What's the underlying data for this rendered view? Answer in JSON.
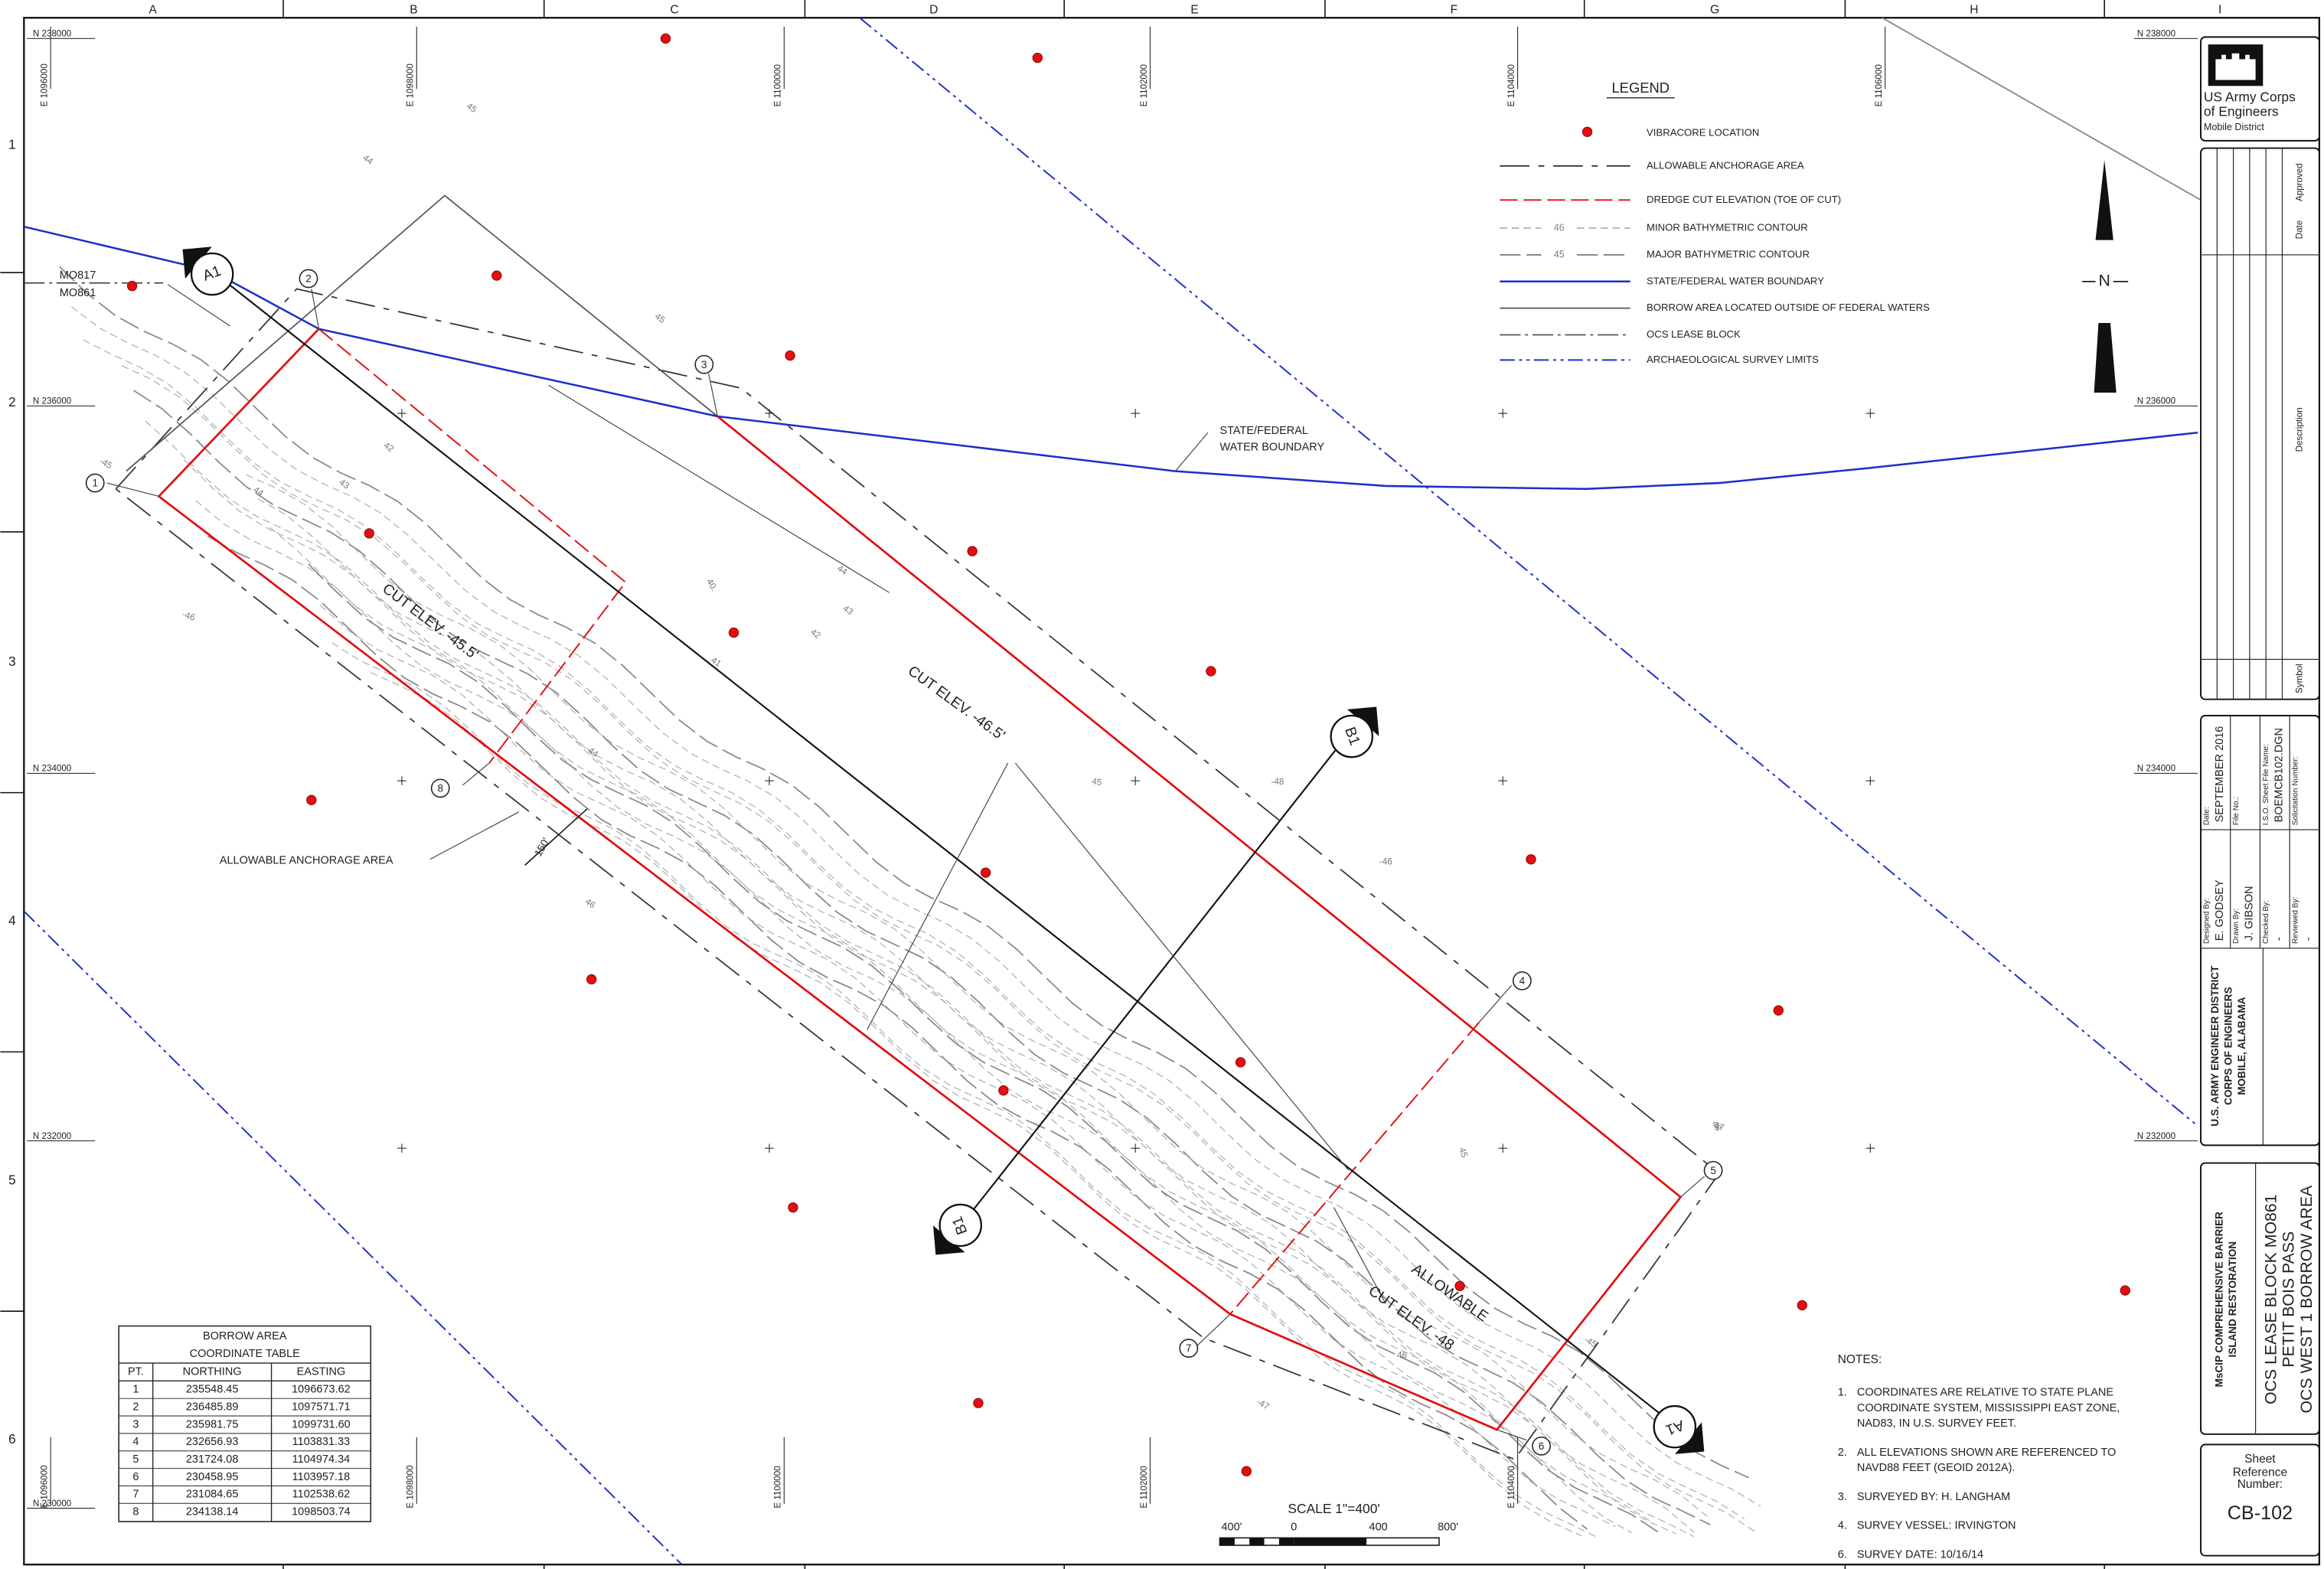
{
  "border": {
    "columns": [
      "A",
      "B",
      "C",
      "D",
      "E",
      "F",
      "G",
      "H",
      "I"
    ],
    "rows": [
      "1",
      "2",
      "3",
      "4",
      "5",
      "6"
    ]
  },
  "grid": {
    "northings": [
      "N 238000",
      "N 236000",
      "N 234000",
      "N 232000",
      "N 230000"
    ],
    "eastings": [
      "E 1096000",
      "E 1098000",
      "E 1100000",
      "E 1102000",
      "E 1104000",
      "E 1106000"
    ]
  },
  "legend": {
    "title": "LEGEND",
    "items": [
      "VIBRACORE LOCATION",
      "ALLOWABLE ANCHORAGE AREA",
      "DREDGE CUT ELEVATION (TOE OF CUT)",
      "MINOR BATHYMETRIC CONTOUR",
      "MAJOR BATHYMETRIC CONTOUR",
      "STATE/FEDERAL WATER BOUNDARY",
      "BORROW AREA LOCATED OUTSIDE OF FEDERAL WATERS",
      "OCS LEASE BLOCK",
      "ARCHAEOLOGICAL SURVEY LIMITS"
    ],
    "minor_sample": "46",
    "major_sample": "45"
  },
  "annotations": {
    "block_north": "MO817",
    "block_south": "MO861",
    "section_a": "A1",
    "section_b": "B1",
    "cut_west": "CUT ELEV. -45.5'",
    "cut_east": "CUT ELEV. -46.5'",
    "allowable": "ALLOWABLE",
    "cut_allowable": "CUT ELEV. -48",
    "anchorage": "ALLOWABLE ANCHORAGE AREA",
    "boundary": [
      "STATE/FEDERAL",
      "WATER BOUNDARY"
    ],
    "offset": "150'"
  },
  "point_labels": [
    "1",
    "2",
    "3",
    "4",
    "5",
    "6",
    "7",
    "8"
  ],
  "contour_labels": [
    "45",
    "44",
    "43",
    "44",
    "42",
    "45",
    "44",
    "43",
    "42",
    "40.",
    "41",
    "-46",
    "44",
    "46",
    "-48",
    "-46",
    "46",
    "45",
    "45",
    "47",
    "46",
    "-47",
    "-45",
    "-45"
  ],
  "table": {
    "title": [
      "BORROW AREA",
      "COORDINATE TABLE"
    ],
    "headers": [
      "PT.",
      "NORTHING",
      "EASTING"
    ],
    "rows": [
      [
        "1",
        "235548.45",
        "1096673.62"
      ],
      [
        "2",
        "236485.89",
        "1097571.71"
      ],
      [
        "3",
        "235981.75",
        "1099731.60"
      ],
      [
        "4",
        "232656.93",
        "1103831.33"
      ],
      [
        "5",
        "231724.08",
        "1104974.34"
      ],
      [
        "6",
        "230458.95",
        "1103957.18"
      ],
      [
        "7",
        "231084.65",
        "1102538.62"
      ],
      [
        "8",
        "234138.14",
        "1098503.74"
      ]
    ]
  },
  "scale": {
    "title": "SCALE 1\"=400'",
    "labels": [
      "400'",
      "0",
      "400",
      "800'"
    ]
  },
  "notes": {
    "title": "NOTES:",
    "items": [
      {
        "number": "1.",
        "lines": [
          "COORDINATES ARE RELATIVE TO STATE PLANE",
          "COORDINATE SYSTEM, MISSISSIPPI EAST ZONE,",
          "NAD83, IN U.S. SURVEY FEET."
        ]
      },
      {
        "number": "2.",
        "lines": [
          "ALL ELEVATIONS SHOWN ARE REFERENCED TO",
          "NAVD88 FEET (GEOID 2012A)."
        ]
      },
      {
        "number": "3.",
        "lines": [
          "SURVEYED BY: H. LANGHAM"
        ]
      },
      {
        "number": "4.",
        "lines": [
          "SURVEY VESSEL: IRVINGTON"
        ]
      },
      {
        "number": "6.",
        "lines": [
          "SURVEY DATE: 10/16/14"
        ]
      }
    ]
  },
  "north": "N",
  "title_block": {
    "agency": [
      "US Army Corps",
      "of Engineers",
      "Mobile District"
    ],
    "revision_headers": [
      "Approved",
      "Date",
      "Description",
      "Symbol"
    ],
    "date_label": "Date:",
    "date": "SEPTEMBER 2016",
    "designed_label": "Designed By:",
    "designed": "E. GODSEY",
    "file_label": "File No.:",
    "drawn_label": "Drawn By:",
    "drawn": "J. GIBSON",
    "iso_label": "I.S.O. Sheet File Name:",
    "iso": "BOEMCB102.DGN",
    "checked_label": "Checked By:",
    "checked": "-",
    "solicitation_label": "Solicitation Number:",
    "reviewed_label": "Reviewed By:",
    "reviewed": "-",
    "district": [
      "U.S. ARMY ENGINEER DISTRICT",
      "CORPS OF ENGINEERS",
      "MOBILE, ALABAMA"
    ],
    "project": [
      "MsCIP COMPREHENSIVE BARRIER",
      "ISLAND RESTORATION"
    ],
    "sheet_title": [
      "OCS LEASE BLOCK MO861",
      "PETIT BOIS PASS",
      "OCS WEST 1 BORROW AREA"
    ],
    "sheet_ref_label": [
      "Sheet",
      "Reference",
      "Number:"
    ],
    "sheet_ref": "CB-102"
  }
}
